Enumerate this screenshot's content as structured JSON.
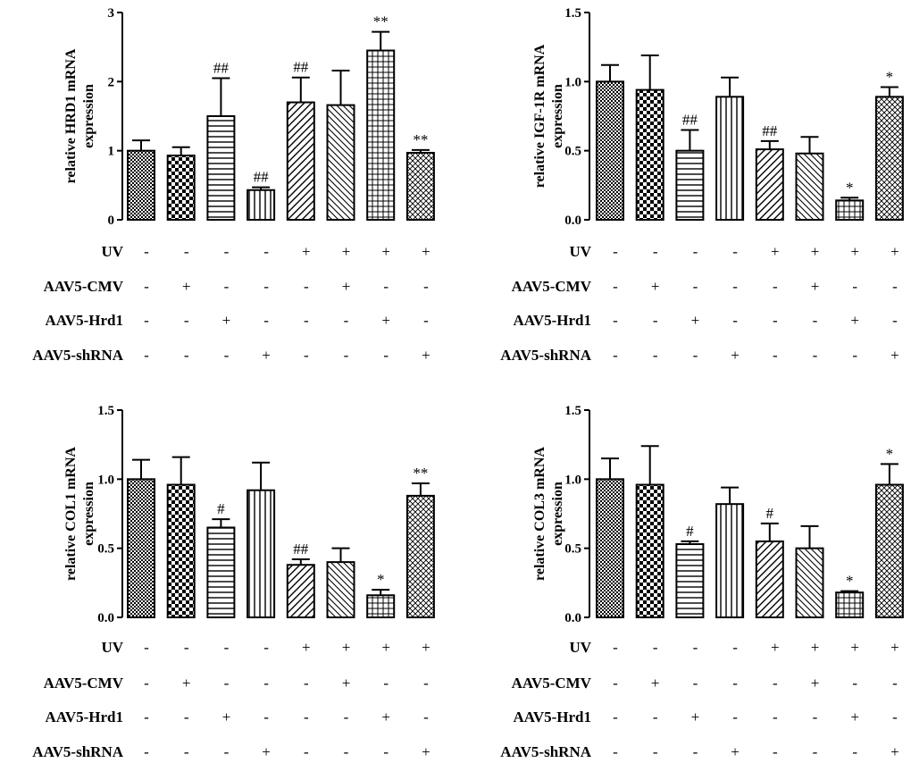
{
  "condition_rows": [
    {
      "label": "UV",
      "values": [
        "-",
        "-",
        "-",
        "-",
        "+",
        "+",
        "+",
        "+"
      ]
    },
    {
      "label": "AAV5-CMV",
      "values": [
        "-",
        "+",
        "-",
        "-",
        "-",
        "+",
        "-",
        "-"
      ]
    },
    {
      "label": "AAV5-Hrd1",
      "values": [
        "-",
        "-",
        "+",
        "-",
        "-",
        "-",
        "+",
        "-"
      ]
    },
    {
      "label": "AAV5-shRNA",
      "values": [
        "-",
        "-",
        "-",
        "+",
        "-",
        "-",
        "-",
        "+"
      ]
    }
  ],
  "chart_data": [
    {
      "type": "bar",
      "ylabel_line1": "relative HRD1 mRNA",
      "ylabel_line2": "expression",
      "ylim": [
        0,
        3
      ],
      "yticks": [
        "0",
        "1",
        "2",
        "3"
      ],
      "values": [
        1.0,
        0.93,
        1.5,
        0.43,
        1.7,
        1.66,
        2.45,
        0.97
      ],
      "errors": [
        0.15,
        0.12,
        0.55,
        0.04,
        0.36,
        0.5,
        0.27,
        0.04
      ],
      "annotations": [
        "",
        "",
        "##",
        "##",
        "##",
        "",
        "**",
        "**"
      ]
    },
    {
      "type": "bar",
      "ylabel_line1": "relative IGF-1R mRNA",
      "ylabel_line2": "expression",
      "ylim": [
        0,
        1.5
      ],
      "yticks": [
        "0.0",
        "0.5",
        "1.0",
        "1.5"
      ],
      "values": [
        1.0,
        0.94,
        0.5,
        0.89,
        0.51,
        0.48,
        0.14,
        0.89
      ],
      "errors": [
        0.12,
        0.25,
        0.15,
        0.14,
        0.06,
        0.12,
        0.02,
        0.07
      ],
      "annotations": [
        "",
        "",
        "##",
        "",
        "##",
        "",
        "*",
        "*"
      ]
    },
    {
      "type": "bar",
      "ylabel_line1": "relative COL1 mRNA",
      "ylabel_line2": "expression",
      "ylim": [
        0,
        1.5
      ],
      "yticks": [
        "0.0",
        "0.5",
        "1.0",
        "1.5"
      ],
      "values": [
        1.0,
        0.96,
        0.65,
        0.92,
        0.38,
        0.4,
        0.16,
        0.88
      ],
      "errors": [
        0.14,
        0.2,
        0.06,
        0.2,
        0.04,
        0.1,
        0.04,
        0.09
      ],
      "annotations": [
        "",
        "",
        "#",
        "",
        "##",
        "",
        "*",
        "**"
      ]
    },
    {
      "type": "bar",
      "ylabel_line1": "relative COL3 mRNA",
      "ylabel_line2": "expression",
      "ylim": [
        0,
        1.5
      ],
      "yticks": [
        "0.0",
        "0.5",
        "1.0",
        "1.5"
      ],
      "values": [
        1.0,
        0.96,
        0.53,
        0.82,
        0.55,
        0.5,
        0.18,
        0.96
      ],
      "errors": [
        0.15,
        0.28,
        0.02,
        0.12,
        0.13,
        0.16,
        0.01,
        0.15
      ],
      "annotations": [
        "",
        "",
        "#",
        "",
        "#",
        "",
        "*",
        "*"
      ]
    }
  ]
}
